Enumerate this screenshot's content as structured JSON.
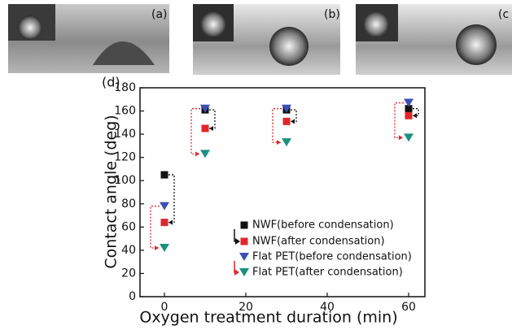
{
  "panels": [
    {
      "label": "(a)"
    },
    {
      "label": "(b)"
    },
    {
      "label": "(c"
    }
  ],
  "chart_data": {
    "type": "scatter",
    "panel_label": "(d)",
    "x_label": "Oxygen treatment duration (min)",
    "y_label": "Contact angle (deg)",
    "xlim": [
      -6,
      64
    ],
    "ylim": [
      0,
      180
    ],
    "xticks": [
      0,
      20,
      40,
      60
    ],
    "yticks": [
      0,
      20,
      40,
      60,
      80,
      100,
      120,
      140,
      160,
      180
    ],
    "series": [
      {
        "name": "NWF(before condensation)",
        "color": "#111111",
        "marker": "square",
        "x": [
          0,
          10,
          30,
          60
        ],
        "values": [
          105,
          161,
          161,
          162
        ]
      },
      {
        "name": "NWF(after condensation)",
        "color": "#e0262a",
        "marker": "square",
        "x": [
          0,
          10,
          30,
          60
        ],
        "values": [
          64,
          145,
          151,
          156
        ]
      },
      {
        "name": "Flat PET(before condensation)",
        "color": "#3a4fb5",
        "marker": "triangle-down",
        "x": [
          0,
          10,
          30,
          60
        ],
        "values": [
          78,
          162,
          162,
          167
        ]
      },
      {
        "name": "Flat PET(after condensation)",
        "color": "#1b8f80",
        "marker": "triangle-down",
        "x": [
          0,
          10,
          30,
          60
        ],
        "values": [
          42,
          123,
          133,
          137
        ]
      }
    ]
  }
}
